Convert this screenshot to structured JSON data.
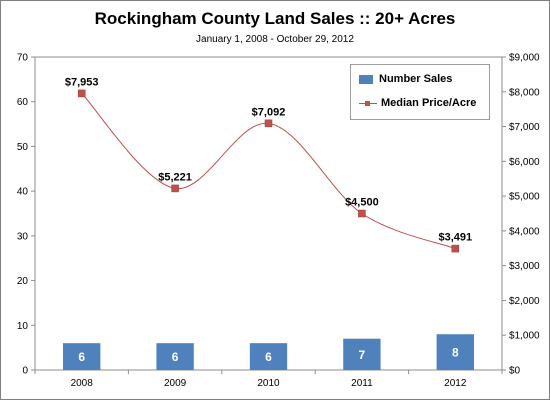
{
  "chart_data": {
    "type": "bar+line",
    "title": "Rockingham  County Land Sales  ::  20+ Acres",
    "subtitle": "January 1, 2008 - October 29, 2012",
    "categories": [
      "2008",
      "2009",
      "2010",
      "2011",
      "2012"
    ],
    "series": [
      {
        "name": "Number Sales",
        "kind": "bar",
        "axis": "left",
        "color": "#4f81bd",
        "values": [
          6,
          6,
          6,
          7,
          8
        ],
        "labels": [
          "6",
          "6",
          "6",
          "7",
          "8"
        ]
      },
      {
        "name": "Median Price/Acre",
        "kind": "line",
        "axis": "right",
        "color": "#c0504d",
        "smooth": true,
        "values": [
          7953,
          5221,
          7092,
          4500,
          3491
        ],
        "labels": [
          "$7,953",
          "$5,221",
          "$7,092",
          "$4,500",
          "$3,491"
        ]
      }
    ],
    "y_left": {
      "ylim": [
        0,
        70
      ],
      "ticks": [
        0,
        10,
        20,
        30,
        40,
        50,
        60,
        70
      ],
      "tick_labels": [
        "0",
        "10",
        "20",
        "30",
        "40",
        "50",
        "60",
        "70"
      ]
    },
    "y_right": {
      "ylim": [
        0,
        9000
      ],
      "ticks": [
        0,
        1000,
        2000,
        3000,
        4000,
        5000,
        6000,
        7000,
        8000,
        9000
      ],
      "tick_labels": [
        "$0",
        "$1,000",
        "$2,000",
        "$3,000",
        "$4,000",
        "$5,000",
        "$6,000",
        "$7,000",
        "$8,000",
        "$9,000"
      ]
    },
    "grid": false,
    "legend_position": "top-right"
  }
}
